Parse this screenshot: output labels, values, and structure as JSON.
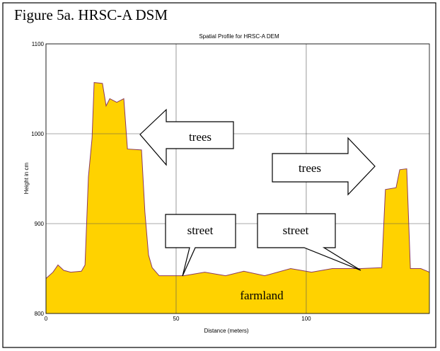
{
  "chart_data": {
    "type": "area",
    "figure_label": "Figure 5a. HRSC-A DSM",
    "title": "Spatial Profile for HRSC-A DEM",
    "x_label": "Distance (meters)",
    "y_label": "Height in cm",
    "x": [
      0,
      2.7,
      4.6,
      6.8,
      9.5,
      13.6,
      15,
      16.3,
      17.7,
      18.5,
      21.7,
      23.1,
      24.5,
      27.2,
      29.9,
      31.3,
      36.7,
      38,
      39.4,
      40.8,
      43.5,
      53,
      61,
      69,
      76,
      84,
      94,
      102,
      110,
      121,
      129,
      130.4,
      134.5,
      135.9,
      138.6,
      140,
      144,
      147.3
    ],
    "values": [
      839,
      846,
      854,
      848,
      846,
      847,
      854,
      952,
      995,
      1057,
      1056,
      1031,
      1039,
      1035,
      1039,
      983,
      982,
      913,
      865,
      851,
      842,
      842,
      846,
      842,
      847,
      842,
      850,
      846,
      850,
      850,
      851,
      938,
      940,
      960,
      961,
      850,
      850,
      846
    ],
    "color": "#ffd200",
    "line_color": "#8b3a62",
    "xlim": [
      0,
      147.3
    ],
    "ylim": [
      800,
      1100
    ],
    "xticks": [
      0,
      50,
      100
    ],
    "yticks": [
      800,
      900,
      1000,
      1100
    ],
    "grid": true,
    "annotations": [
      "trees",
      "trees",
      "street",
      "street",
      "farmland"
    ]
  }
}
